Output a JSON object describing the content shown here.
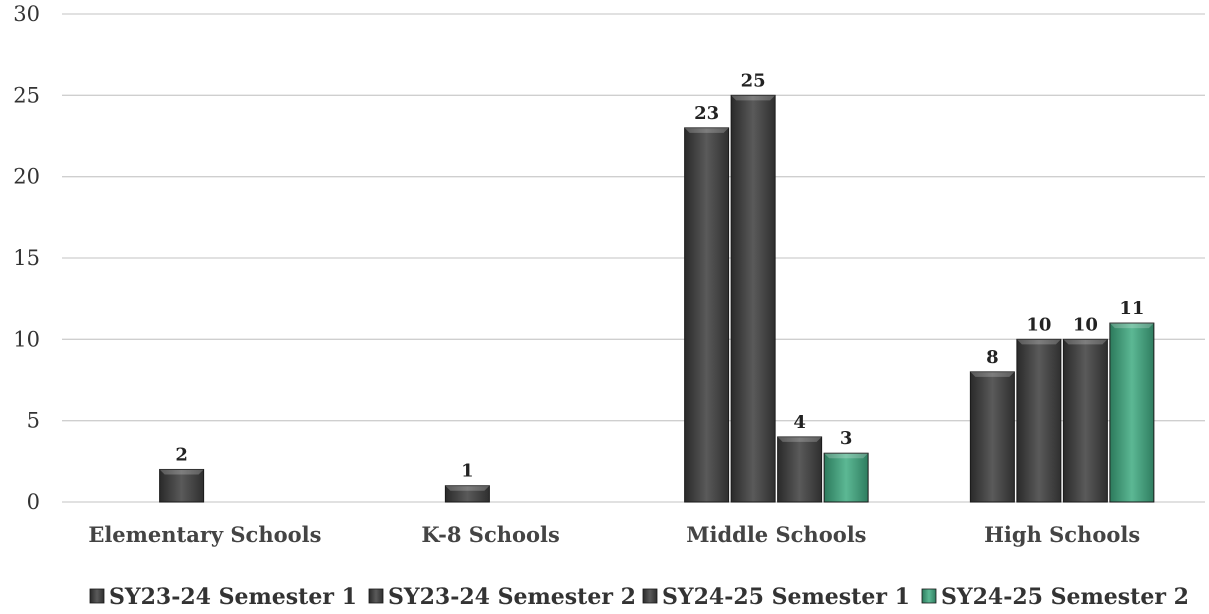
{
  "chart_data": {
    "type": "bar",
    "categories": [
      "Elementary Schools",
      "K-8 Schools",
      "Middle Schools",
      "High Schools"
    ],
    "series": [
      {
        "name": "SY23-24 Semester 1",
        "values": [
          null,
          null,
          23,
          8
        ],
        "color": "#4a4a4a"
      },
      {
        "name": "SY23-24 Semester 2",
        "values": [
          2,
          1,
          25,
          10
        ],
        "color": "#4a4a4a"
      },
      {
        "name": "SY24-25 Semester 1",
        "values": [
          null,
          null,
          4,
          10
        ],
        "color": "#4a4a4a"
      },
      {
        "name": "SY24-25 Semester 2",
        "values": [
          null,
          null,
          3,
          11
        ],
        "color": "#3f9a78"
      }
    ],
    "ylim": [
      0,
      30
    ],
    "yticks": [
      0,
      5,
      10,
      15,
      20,
      25,
      30
    ],
    "grid": true,
    "legend": "bottom"
  }
}
